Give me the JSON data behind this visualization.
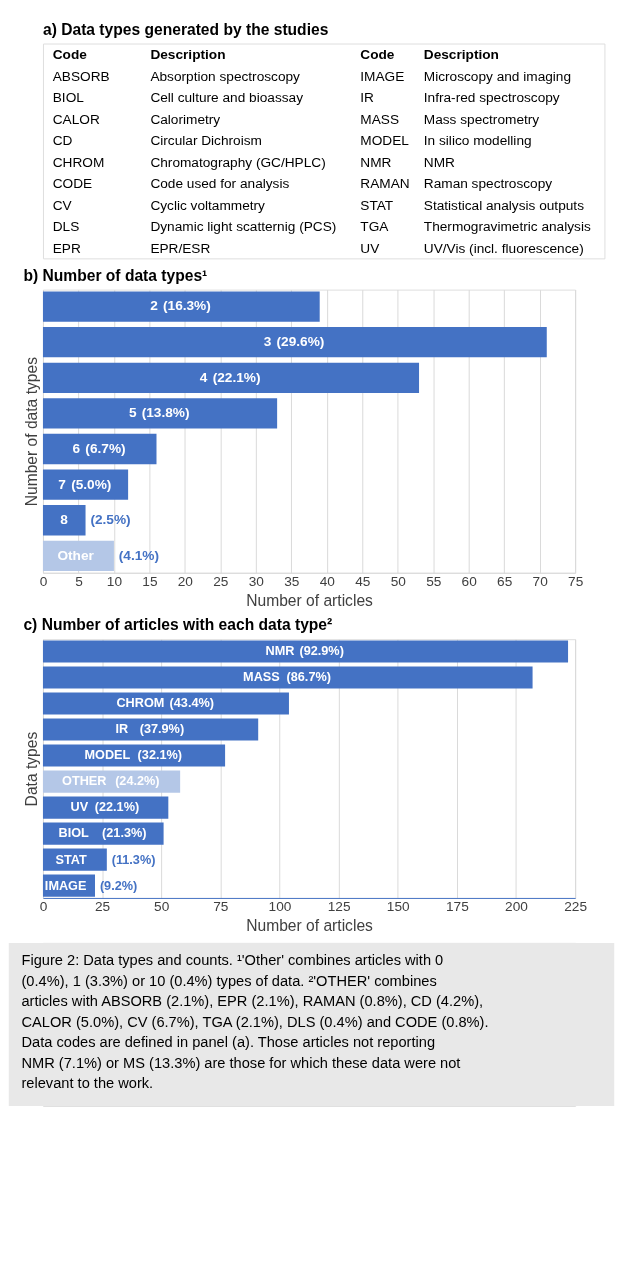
{
  "chart_data": [
    {
      "type": "other",
      "title": "a) Data types generated by the studies",
      "annotations": [
        "Code",
        "Description",
        "Code",
        "Description",
        "ABSORB",
        "Absorption spectroscopy",
        "IMAGE",
        "Microscopy and imaging",
        "BIOL",
        "Cell culture and bioassay",
        "IR",
        "Infra-red spectroscopy",
        "CALOR",
        "Calorimetry",
        "MASS",
        "Mass spectrometry",
        "CD",
        "Circular Dichroism",
        "MODEL",
        "In silico modelling",
        "CHROM",
        "Chromatography (GC/HPLC)",
        "NMR",
        "NMR",
        "CODE",
        "Code used for analysis",
        "RAMAN",
        "Raman spectroscopy",
        "CV",
        "Cyclic voltammetry",
        "STAT",
        "Statistical analysis outputs",
        "DLS",
        "Dynamic light scatternig (PCS)",
        "TGA",
        "Thermogravimetric analysis",
        "EPR",
        "EPR/ESR",
        "UV",
        "UV/Vis (incl. fluorescence)"
      ]
    },
    {
      "type": "bar",
      "orientation": "horizontal",
      "title": "b) Number of data types¹",
      "xlabel": "Number of articles",
      "ylabel": "Number of data types",
      "categories": [
        "2",
        "3",
        "4",
        "5",
        "6",
        "7",
        "8",
        "Other"
      ],
      "values": [
        39,
        71,
        53,
        33,
        16,
        12,
        6,
        10
      ],
      "colors": [
        "#4472c4",
        "#4472c4",
        "#4472c4",
        "#4472c4",
        "#4472c4",
        "#4472c4",
        "#4472c4",
        "#b4c7e7"
      ],
      "xlim": [
        0,
        75
      ],
      "xticks": [
        0,
        5,
        10,
        15,
        20,
        25,
        30,
        35,
        40,
        45,
        50,
        55,
        60,
        65,
        70,
        75
      ],
      "grid": "x",
      "tick_labels": "x",
      "annotations": [
        "(16.3%)",
        "(29.6%)",
        "(22.1%)",
        "(13.8%)",
        "(6.7%)",
        "(5.0%)",
        "(2.5%)",
        "(4.1%)"
      ]
    },
    {
      "type": "bar",
      "orientation": "horizontal",
      "title": "c) Number of articles with each data type²",
      "xlabel": "Number of articles",
      "ylabel": "Data types",
      "categories": [
        "NMR",
        "MASS",
        "CHROM",
        "IR",
        "MODEL",
        "OTHER",
        "UV",
        "BIOL",
        "STAT",
        "IMAGE"
      ],
      "values": [
        222,
        207,
        104,
        91,
        77,
        58,
        53,
        51,
        27,
        22
      ],
      "colors": [
        "#4472c4",
        "#4472c4",
        "#4472c4",
        "#4472c4",
        "#4472c4",
        "#b4c7e7",
        "#4472c4",
        "#4472c4",
        "#4472c4",
        "#4472c4"
      ],
      "xlim": [
        0,
        225
      ],
      "xticks": [
        0,
        25,
        50,
        75,
        100,
        125,
        150,
        175,
        200,
        225
      ],
      "grid": "x",
      "tick_labels": "x",
      "annotations": [
        "(92.9%)",
        "(86.7%)",
        "(43.4%)",
        "(37.9%)",
        "(32.1%)",
        "(24.2%)",
        "(22.1%)",
        "(21.3%)",
        "(11.3%)",
        "(9.2%)",
        "Figure 2: Data types and counts. ¹'Other' combines articles with 0 (0.4%), 1 (3.3%) or 10 (0.4%) types of data. ²'OTHER' combines articles with ABSORB (2.1%), EPR (2.1%), RAMAN (0.8%), CD (4.2%), CALOR (5.0%), CV (6.7%), TGA (2.1%), DLS (0.4%) and CODE (0.8%). Data codes are defined in panel (a). Those articles not reporting NMR (7.1%) or MS (13.3%) are those for which these data were not relevant to the work."
      ]
    }
  ]
}
